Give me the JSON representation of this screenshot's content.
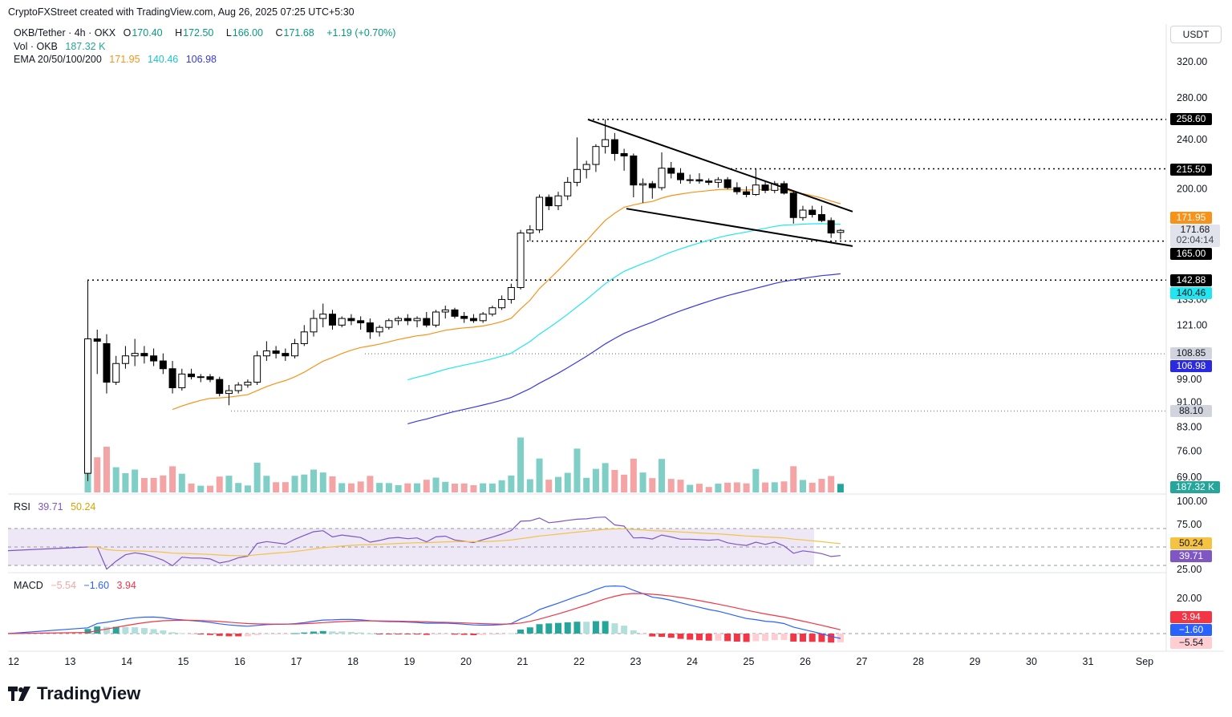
{
  "header": {
    "credit": "CryptoFXStreet created with TradingView.com, Aug 26, 2025 07:25 UTC+5:30",
    "symbol": "OKB/Tether · 4h · OKX",
    "o_label": "O",
    "open": "170.40",
    "h_label": "H",
    "high": "172.50",
    "l_label": "L",
    "low": "166.00",
    "c_label": "C",
    "close": "171.68",
    "change": "+1.19 (+0.70%)",
    "vol_label": "Vol · OKB",
    "vol_value": "187.32 K",
    "ema_label": "EMA 20/50/100/200",
    "ema20": "171.95",
    "ema50": "140.46",
    "ema100": "106.98"
  },
  "currency": "USDT",
  "colors": {
    "up": "#ffffff",
    "down": "#000000",
    "candle_border": "#000000",
    "ema20": "#f7931a",
    "ema50": "#21e6f0",
    "ema100": "#3a3ae0",
    "vol_up": "#7fcfc6",
    "vol_down": "#f4a4a4",
    "vol_last": "#26a69a",
    "rsi": "#7e57c2",
    "rsi_ma": "#f5c242",
    "rsi_band": "#ede7f6",
    "macd": "#2962ff",
    "signal": "#f23645",
    "hist_up_strong": "#26a69a",
    "hist_up_weak": "#b2dfdb",
    "hist_down_strong": "#f23645",
    "hist_down_weak": "#ffcdd2"
  },
  "price_axis": {
    "ticks": [
      "320.00",
      "280.00",
      "240.00",
      "200.00",
      "133.00",
      "121.00",
      "99.00",
      "91.00",
      "83.00",
      "76.00",
      "69.00"
    ],
    "tag_ema20": "171.95",
    "tag_last": "171.68",
    "tag_countdown": "02:04:14",
    "tag_165": "165.00",
    "tag_142": "142.88",
    "tag_ema50": "140.46",
    "tag_108": "108.85",
    "tag_ema100": "106.98",
    "tag_88": "88.10",
    "tag_258": "258.60",
    "tag_215": "215.50",
    "tag_vol": "187.32 K"
  },
  "rsi": {
    "label": "RSI",
    "value": "39.71",
    "ma": "50.24",
    "ticks": [
      "100.00",
      "75.00",
      "25.00"
    ]
  },
  "macd": {
    "label": "MACD",
    "hist": "−5.54",
    "macd": "−1.60",
    "signal": "3.94",
    "ticks": [
      "20.00"
    ]
  },
  "time_axis": [
    "12",
    "13",
    "14",
    "15",
    "16",
    "17",
    "18",
    "19",
    "20",
    "21",
    "22",
    "23",
    "24",
    "25",
    "26",
    "27",
    "28",
    "29",
    "30",
    "31",
    "Sep"
  ],
  "brand": "TradingView",
  "chart_data": {
    "type": "candlestick",
    "title": "OKB/Tether · 4h · OKX",
    "price_range": [
      62,
      335
    ],
    "key_levels": [
      258.6,
      215.5,
      165.0,
      142.88,
      108.85,
      88.1
    ],
    "pattern": "falling wedge",
    "candles": [
      {
        "o": 70,
        "h": 142.88,
        "l": 68,
        "c": 115
      },
      {
        "o": 115,
        "h": 119,
        "l": 101,
        "c": 114
      },
      {
        "o": 113,
        "h": 117,
        "l": 94,
        "c": 98
      },
      {
        "o": 98,
        "h": 108,
        "l": 97,
        "c": 105
      },
      {
        "o": 105,
        "h": 112,
        "l": 103,
        "c": 108
      },
      {
        "o": 108,
        "h": 115,
        "l": 104,
        "c": 109
      },
      {
        "o": 109,
        "h": 112,
        "l": 105,
        "c": 108
      },
      {
        "o": 108,
        "h": 111,
        "l": 104,
        "c": 106
      },
      {
        "o": 106,
        "h": 109,
        "l": 101,
        "c": 103
      },
      {
        "o": 103,
        "h": 106,
        "l": 94,
        "c": 96
      },
      {
        "o": 96,
        "h": 103,
        "l": 95,
        "c": 101
      },
      {
        "o": 101,
        "h": 103,
        "l": 99,
        "c": 100
      },
      {
        "o": 100,
        "h": 101,
        "l": 98,
        "c": 100
      },
      {
        "o": 100,
        "h": 101,
        "l": 98,
        "c": 99
      },
      {
        "o": 99,
        "h": 100,
        "l": 93,
        "c": 94
      },
      {
        "o": 94,
        "h": 97,
        "l": 90,
        "c": 95
      },
      {
        "o": 95,
        "h": 98,
        "l": 94,
        "c": 97
      },
      {
        "o": 97,
        "h": 99,
        "l": 96,
        "c": 98
      },
      {
        "o": 98,
        "h": 110,
        "l": 97,
        "c": 108
      },
      {
        "o": 108,
        "h": 114,
        "l": 106,
        "c": 110
      },
      {
        "o": 110,
        "h": 112,
        "l": 107,
        "c": 109
      },
      {
        "o": 109,
        "h": 111,
        "l": 106,
        "c": 108
      },
      {
        "o": 108,
        "h": 115,
        "l": 107,
        "c": 113
      },
      {
        "o": 113,
        "h": 121,
        "l": 112,
        "c": 118
      },
      {
        "o": 118,
        "h": 128,
        "l": 116,
        "c": 124
      },
      {
        "o": 124,
        "h": 131,
        "l": 120,
        "c": 126
      },
      {
        "o": 126,
        "h": 128,
        "l": 119,
        "c": 121
      },
      {
        "o": 121,
        "h": 125,
        "l": 120,
        "c": 124
      },
      {
        "o": 124,
        "h": 126,
        "l": 121,
        "c": 123
      },
      {
        "o": 123,
        "h": 125,
        "l": 119,
        "c": 122
      },
      {
        "o": 122,
        "h": 124,
        "l": 115,
        "c": 118
      },
      {
        "o": 118,
        "h": 121,
        "l": 116,
        "c": 120
      },
      {
        "o": 120,
        "h": 124,
        "l": 119,
        "c": 123
      },
      {
        "o": 123,
        "h": 125,
        "l": 121,
        "c": 124
      },
      {
        "o": 124,
        "h": 126,
        "l": 121,
        "c": 123
      },
      {
        "o": 123,
        "h": 125,
        "l": 120,
        "c": 124
      },
      {
        "o": 124,
        "h": 127,
        "l": 120,
        "c": 121
      },
      {
        "o": 121,
        "h": 128,
        "l": 120,
        "c": 127
      },
      {
        "o": 127,
        "h": 130,
        "l": 124,
        "c": 128
      },
      {
        "o": 128,
        "h": 129,
        "l": 124,
        "c": 125
      },
      {
        "o": 125,
        "h": 127,
        "l": 122,
        "c": 124
      },
      {
        "o": 124,
        "h": 126,
        "l": 122,
        "c": 123
      },
      {
        "o": 123,
        "h": 127,
        "l": 122,
        "c": 126
      },
      {
        "o": 126,
        "h": 130,
        "l": 125,
        "c": 129
      },
      {
        "o": 129,
        "h": 135,
        "l": 128,
        "c": 133
      },
      {
        "o": 133,
        "h": 141,
        "l": 131,
        "c": 139
      },
      {
        "o": 139,
        "h": 172,
        "l": 138,
        "c": 170
      },
      {
        "o": 170,
        "h": 175,
        "l": 165,
        "c": 172
      },
      {
        "o": 172,
        "h": 196,
        "l": 170,
        "c": 194
      },
      {
        "o": 194,
        "h": 196,
        "l": 185,
        "c": 188
      },
      {
        "o": 188,
        "h": 198,
        "l": 185,
        "c": 195
      },
      {
        "o": 195,
        "h": 209,
        "l": 192,
        "c": 205
      },
      {
        "o": 205,
        "h": 242,
        "l": 202,
        "c": 215
      },
      {
        "o": 215,
        "h": 222,
        "l": 208,
        "c": 219
      },
      {
        "o": 219,
        "h": 236,
        "l": 213,
        "c": 234
      },
      {
        "o": 234,
        "h": 258.6,
        "l": 228,
        "c": 240
      },
      {
        "o": 240,
        "h": 246,
        "l": 222,
        "c": 228
      },
      {
        "o": 228,
        "h": 232,
        "l": 214,
        "c": 226
      },
      {
        "o": 226,
        "h": 228,
        "l": 194,
        "c": 203
      },
      {
        "o": 203,
        "h": 208,
        "l": 190,
        "c": 204
      },
      {
        "o": 204,
        "h": 206,
        "l": 193,
        "c": 201
      },
      {
        "o": 201,
        "h": 229,
        "l": 199,
        "c": 216
      },
      {
        "o": 216,
        "h": 221,
        "l": 208,
        "c": 212
      },
      {
        "o": 212,
        "h": 216,
        "l": 204,
        "c": 207
      },
      {
        "o": 207,
        "h": 211,
        "l": 204,
        "c": 207
      },
      {
        "o": 207,
        "h": 212,
        "l": 204,
        "c": 206
      },
      {
        "o": 206,
        "h": 208,
        "l": 203,
        "c": 205
      },
      {
        "o": 205,
        "h": 209,
        "l": 201,
        "c": 207
      },
      {
        "o": 207,
        "h": 209,
        "l": 200,
        "c": 201
      },
      {
        "o": 201,
        "h": 205,
        "l": 196,
        "c": 198
      },
      {
        "o": 198,
        "h": 202,
        "l": 194,
        "c": 196
      },
      {
        "o": 196,
        "h": 215.5,
        "l": 195,
        "c": 203
      },
      {
        "o": 203,
        "h": 206,
        "l": 197,
        "c": 199
      },
      {
        "o": 199,
        "h": 206,
        "l": 197,
        "c": 204
      },
      {
        "o": 204,
        "h": 206,
        "l": 196,
        "c": 197
      },
      {
        "o": 197,
        "h": 199,
        "l": 176,
        "c": 180
      },
      {
        "o": 180,
        "h": 188,
        "l": 178,
        "c": 185
      },
      {
        "o": 185,
        "h": 188,
        "l": 180,
        "c": 182
      },
      {
        "o": 182,
        "h": 188,
        "l": 177,
        "c": 178
      },
      {
        "o": 178,
        "h": 180,
        "l": 167,
        "c": 170
      },
      {
        "o": 170.4,
        "h": 172.5,
        "l": 166,
        "c": 171.68
      }
    ]
  }
}
